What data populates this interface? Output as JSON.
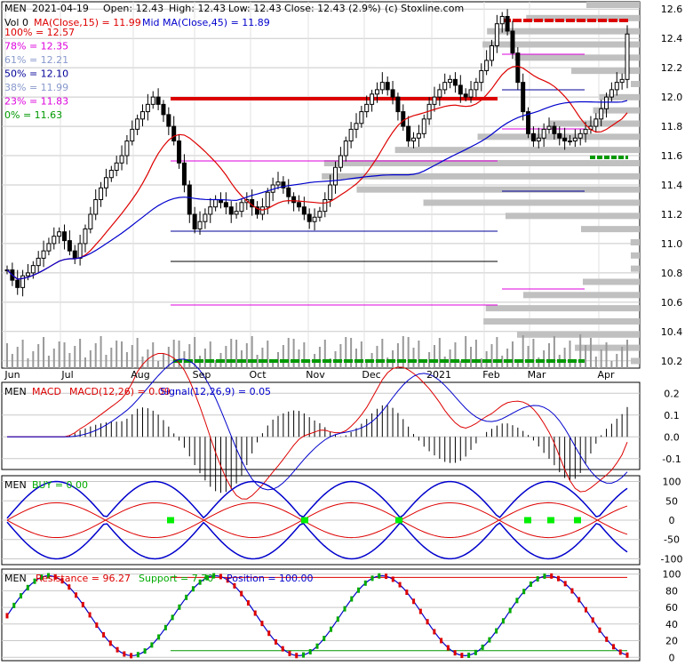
{
  "chart_data": [
    {
      "type": "candlestick",
      "symbol": "MEN",
      "header": {
        "date": "2021-04-19",
        "open_label": "Open: 12.43",
        "high_label": "High: 12.43",
        "low_label": "Low: 12.43",
        "close_label": "Close: 12.43 (2.9%)",
        "source": "(c) Stoxline.com",
        "vol_label": "Vol 0",
        "ma_label": "MA(Close,15) = 11.99",
        "mid_ma_label": "Mid MA(Close,45) = 11.89"
      },
      "fib_levels": [
        {
          "label": "100% = 12.57",
          "value": 12.57,
          "color": "#dd0000"
        },
        {
          "label": "78% = 12.35",
          "value": 12.35,
          "color": "#dd00dd"
        },
        {
          "label": "61% = 12.21",
          "value": 12.21,
          "color": "#8899cc"
        },
        {
          "label": "50% = 12.10",
          "value": 12.1,
          "color": "#000099"
        },
        {
          "label": "38% = 11.99",
          "value": 11.99,
          "color": "#8899cc"
        },
        {
          "label": "23% = 11.83",
          "value": 11.83,
          "color": "#dd00dd"
        },
        {
          "label": "0% = 11.63",
          "value": 11.63,
          "color": "#009900"
        }
      ],
      "y_ticks": [
        "12.6",
        "12.4",
        "12.2",
        "12.0",
        "11.8",
        "11.6",
        "11.4",
        "11.2",
        "11.0",
        "10.8",
        "10.6",
        "10.4",
        "10.2"
      ],
      "ylim": [
        10.15,
        12.65
      ],
      "x_labels": [
        "Jun",
        "Jul",
        "Aug",
        "Sep",
        "Oct",
        "Nov",
        "Dec",
        "2021",
        "Feb",
        "Mar",
        "Apr"
      ],
      "close_series": [
        10.82,
        10.75,
        10.7,
        10.78,
        10.8,
        10.85,
        10.9,
        10.95,
        11.0,
        11.05,
        11.08,
        11.02,
        10.95,
        10.9,
        11.0,
        11.1,
        11.2,
        11.3,
        11.38,
        11.45,
        11.5,
        11.55,
        11.6,
        11.7,
        11.78,
        11.85,
        11.9,
        11.95,
        12.0,
        11.95,
        11.88,
        11.8,
        11.7,
        11.55,
        11.4,
        11.2,
        11.1,
        11.15,
        11.2,
        11.25,
        11.3,
        11.28,
        11.25,
        11.2,
        11.22,
        11.28,
        11.3,
        11.25,
        11.2,
        11.25,
        11.35,
        11.4,
        11.42,
        11.38,
        11.32,
        11.28,
        11.25,
        11.2,
        11.15,
        11.18,
        11.22,
        11.3,
        11.4,
        11.52,
        11.6,
        11.7,
        11.78,
        11.82,
        11.9,
        11.95,
        12.02,
        12.05,
        12.1,
        12.05,
        12.0,
        11.9,
        11.8,
        11.7,
        11.72,
        11.75,
        11.85,
        11.95,
        12.0,
        12.05,
        12.1,
        12.12,
        12.08,
        12.02,
        12.0,
        12.05,
        12.1,
        12.18,
        12.25,
        12.35,
        12.5,
        12.55,
        12.45,
        12.3,
        12.1,
        11.9,
        11.75,
        11.7,
        11.72,
        11.78,
        11.8,
        11.75,
        11.72,
        11.7,
        11.7,
        11.72,
        11.75,
        11.78,
        11.8,
        11.85,
        11.92,
        12.0,
        12.05,
        12.1,
        12.12,
        12.43
      ],
      "volume_note": "Vol 0"
    },
    {
      "type": "line",
      "panel": "MACD",
      "label_name": "MEN",
      "label_main": "MACD",
      "label_macd": "MACD(12,26) = 0.09",
      "label_signal": "Signal(12,26,9) = 0.05",
      "y_ticks": [
        "0.2",
        "0.1",
        "0.0",
        "-0.1"
      ],
      "ylim": [
        -0.15,
        0.25
      ]
    },
    {
      "type": "line",
      "panel": "BUY",
      "label_name": "MEN",
      "label_main": "BUY = 0.00",
      "y_ticks": [
        "100",
        "50",
        "0",
        "-50",
        "-100"
      ],
      "ylim": [
        -115,
        115
      ]
    },
    {
      "type": "line",
      "panel": "Resistance/Support",
      "label_name": "MEN",
      "label_res": "Resistance = 96.27",
      "label_sup": "Support = 7.70",
      "label_pos": "Position = 100.00",
      "y_ticks": [
        "100",
        "80",
        "60",
        "40",
        "20",
        "0"
      ],
      "ylim": [
        -4,
        106
      ]
    }
  ],
  "colors": {
    "up": "#ffffff",
    "down": "#000000",
    "ma15": "#dd0000",
    "ma45": "#0000cc",
    "grid": "#c8c8c8",
    "profile": "#c0c0c0",
    "resistance": "#dd0000",
    "support": "#009900",
    "buy_marker": "#00ee00"
  }
}
